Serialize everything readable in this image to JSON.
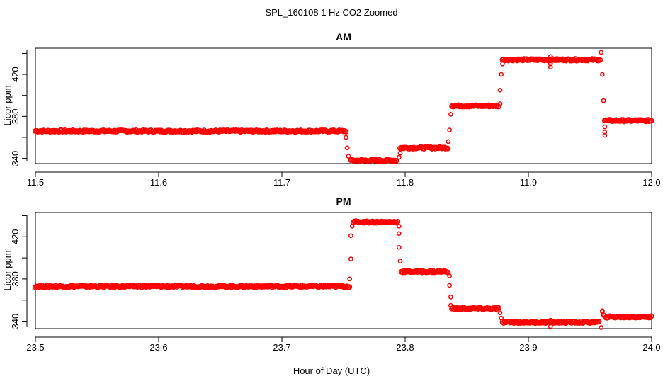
{
  "figure": {
    "title": "SPL_160108  1 Hz CO2 Zoomed",
    "xlabel": "Hour of Day (UTC)"
  },
  "colors": {
    "points": "#ff0000",
    "axes": "#000000",
    "background": "#ffffff"
  },
  "chart_data": [
    {
      "type": "scatter",
      "title": "AM",
      "xlabel": "",
      "ylabel": "Licor ppm",
      "xlim": [
        11.5,
        12.0
      ],
      "ylim": [
        335,
        445
      ],
      "xticks": [
        11.5,
        11.6,
        11.7,
        11.8,
        11.9,
        12.0
      ],
      "xtick_labels": [
        "11.5",
        "11.6",
        "11.7",
        "11.8",
        "11.9",
        "12.0"
      ],
      "yticks": [
        340,
        380,
        420
      ],
      "ytick_labels": [
        "340",
        "380",
        "420"
      ],
      "marker": "open circle",
      "plateaus": [
        {
          "x_start": 11.5,
          "x_end": 11.752,
          "y": 366
        },
        {
          "x_start": 11.756,
          "x_end": 11.793,
          "y": 338
        },
        {
          "x_start": 11.796,
          "x_end": 11.835,
          "y": 350
        },
        {
          "x_start": 11.838,
          "x_end": 11.876,
          "y": 390
        },
        {
          "x_start": 11.879,
          "x_end": 11.959,
          "y": 434
        },
        {
          "x_start": 11.962,
          "x_end": 12.0,
          "y": 376
        }
      ],
      "transition_points": [
        {
          "x": 11.752,
          "y": 360
        },
        {
          "x": 11.753,
          "y": 350
        },
        {
          "x": 11.754,
          "y": 342
        },
        {
          "x": 11.795,
          "y": 341
        },
        {
          "x": 11.796,
          "y": 345
        },
        {
          "x": 11.835,
          "y": 356
        },
        {
          "x": 11.836,
          "y": 367
        },
        {
          "x": 11.837,
          "y": 382
        },
        {
          "x": 11.877,
          "y": 392
        },
        {
          "x": 11.877,
          "y": 405
        },
        {
          "x": 11.878,
          "y": 420
        },
        {
          "x": 11.879,
          "y": 430
        },
        {
          "x": 11.918,
          "y": 437
        },
        {
          "x": 11.918,
          "y": 430
        },
        {
          "x": 11.918,
          "y": 427
        },
        {
          "x": 11.959,
          "y": 441
        },
        {
          "x": 11.96,
          "y": 420
        },
        {
          "x": 11.961,
          "y": 395
        },
        {
          "x": 11.962,
          "y": 370
        },
        {
          "x": 11.962,
          "y": 365
        },
        {
          "x": 11.962,
          "y": 362
        }
      ]
    },
    {
      "type": "scatter",
      "title": "PM",
      "xlabel": "",
      "ylabel": "Licor ppm",
      "xlim": [
        23.5,
        24.0
      ],
      "ylim": [
        333,
        443
      ],
      "xticks": [
        23.5,
        23.6,
        23.7,
        23.8,
        23.9,
        24.0
      ],
      "xtick_labels": [
        "23.5",
        "23.6",
        "23.7",
        "23.8",
        "23.9",
        "24.0"
      ],
      "yticks": [
        340,
        380,
        420
      ],
      "ytick_labels": [
        "340",
        "380",
        "420"
      ],
      "marker": "open circle",
      "plateaus": [
        {
          "x_start": 23.5,
          "x_end": 23.755,
          "y": 373
        },
        {
          "x_start": 23.758,
          "x_end": 23.794,
          "y": 434
        },
        {
          "x_start": 23.797,
          "x_end": 23.835,
          "y": 387
        },
        {
          "x_start": 23.838,
          "x_end": 23.876,
          "y": 352
        },
        {
          "x_start": 23.879,
          "x_end": 23.958,
          "y": 339
        },
        {
          "x_start": 23.962,
          "x_end": 24.0,
          "y": 344
        }
      ],
      "transition_points": [
        {
          "x": 23.755,
          "y": 380
        },
        {
          "x": 23.756,
          "y": 399
        },
        {
          "x": 23.756,
          "y": 421
        },
        {
          "x": 23.757,
          "y": 430
        },
        {
          "x": 23.795,
          "y": 430
        },
        {
          "x": 23.795,
          "y": 423
        },
        {
          "x": 23.795,
          "y": 410
        },
        {
          "x": 23.796,
          "y": 397
        },
        {
          "x": 23.836,
          "y": 383
        },
        {
          "x": 23.836,
          "y": 374
        },
        {
          "x": 23.837,
          "y": 363
        },
        {
          "x": 23.837,
          "y": 355
        },
        {
          "x": 23.877,
          "y": 348
        },
        {
          "x": 23.878,
          "y": 343
        },
        {
          "x": 23.918,
          "y": 341
        },
        {
          "x": 23.918,
          "y": 335
        },
        {
          "x": 23.959,
          "y": 334
        },
        {
          "x": 23.96,
          "y": 349
        },
        {
          "x": 23.96,
          "y": 350
        },
        {
          "x": 23.961,
          "y": 346
        }
      ]
    }
  ]
}
